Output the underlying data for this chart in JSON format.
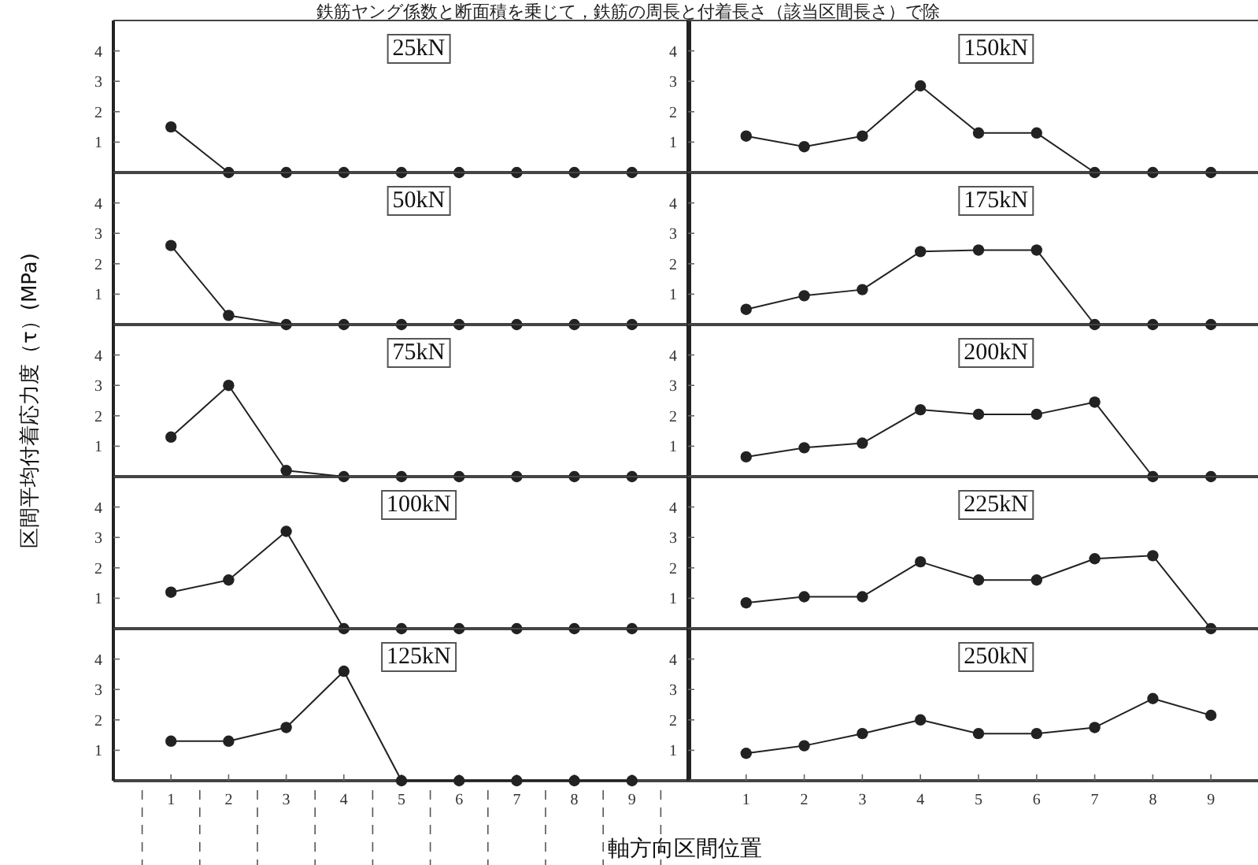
{
  "chart_data": [
    {
      "type": "line",
      "title": "25kN",
      "ylabel": "区間平均付着応力度（τ）(MPa)",
      "annotations": [
        "鉄筋ヤング係数と断面積を乗じて，鉄筋の周長と付着長さ（該当区間長さ）で除"
      ],
      "x": [
        1,
        2,
        3,
        4,
        5,
        6,
        7,
        8,
        9
      ],
      "values": [
        1.5,
        0,
        0,
        0,
        0,
        0,
        0,
        0,
        0
      ],
      "color": "#222222",
      "marker": "circle",
      "xlim": [
        0,
        10
      ],
      "ylim": [
        0,
        5
      ],
      "yticks": [
        1,
        2,
        3,
        4
      ],
      "tick_labels": "y"
    },
    {
      "type": "line",
      "title": "150kN",
      "x": [
        1,
        2,
        3,
        4,
        5,
        6,
        7,
        8,
        9
      ],
      "values": [
        1.2,
        0.85,
        1.2,
        2.85,
        1.3,
        1.3,
        0,
        0,
        0
      ],
      "color": "#222222",
      "marker": "circle",
      "xlim": [
        0,
        10
      ],
      "ylim": [
        0,
        5
      ],
      "yticks": [
        1,
        2,
        3,
        4
      ],
      "tick_labels": "y"
    },
    {
      "type": "line",
      "title": "50kN",
      "x": [
        1,
        2,
        3,
        4,
        5,
        6,
        7,
        8,
        9
      ],
      "values": [
        2.6,
        0.3,
        0,
        0,
        0,
        0,
        0,
        0,
        0
      ],
      "color": "#222222",
      "marker": "circle",
      "xlim": [
        0,
        10
      ],
      "ylim": [
        0,
        5
      ],
      "yticks": [
        1,
        2,
        3,
        4
      ],
      "tick_labels": "y"
    },
    {
      "type": "line",
      "title": "175kN",
      "x": [
        1,
        2,
        3,
        4,
        5,
        6,
        7,
        8,
        9
      ],
      "values": [
        0.5,
        0.95,
        1.15,
        2.4,
        2.45,
        2.45,
        0,
        0,
        0
      ],
      "color": "#222222",
      "marker": "circle",
      "xlim": [
        0,
        10
      ],
      "ylim": [
        0,
        5
      ],
      "yticks": [
        1,
        2,
        3,
        4
      ],
      "tick_labels": "y"
    },
    {
      "type": "line",
      "title": "75kN",
      "x": [
        1,
        2,
        3,
        4,
        5,
        6,
        7,
        8,
        9
      ],
      "values": [
        1.3,
        3.0,
        0.2,
        0,
        0,
        0,
        0,
        0,
        0
      ],
      "color": "#222222",
      "marker": "circle",
      "xlim": [
        0,
        10
      ],
      "ylim": [
        0,
        5
      ],
      "yticks": [
        1,
        2,
        3,
        4
      ],
      "tick_labels": "y"
    },
    {
      "type": "line",
      "title": "200kN",
      "x": [
        1,
        2,
        3,
        4,
        5,
        6,
        7,
        8,
        9
      ],
      "values": [
        0.65,
        0.95,
        1.1,
        2.2,
        2.05,
        2.05,
        2.45,
        0,
        0
      ],
      "color": "#222222",
      "marker": "circle",
      "xlim": [
        0,
        10
      ],
      "ylim": [
        0,
        5
      ],
      "yticks": [
        1,
        2,
        3,
        4
      ],
      "tick_labels": "y"
    },
    {
      "type": "line",
      "title": "100kN",
      "x": [
        1,
        2,
        3,
        4,
        5,
        6,
        7,
        8,
        9
      ],
      "values": [
        1.2,
        1.6,
        3.2,
        0,
        0,
        0,
        0,
        0,
        0
      ],
      "color": "#222222",
      "marker": "circle",
      "xlim": [
        0,
        10
      ],
      "ylim": [
        0,
        5
      ],
      "yticks": [
        1,
        2,
        3,
        4
      ],
      "tick_labels": "y"
    },
    {
      "type": "line",
      "title": "225kN",
      "x": [
        1,
        2,
        3,
        4,
        5,
        6,
        7,
        8,
        9
      ],
      "values": [
        0.85,
        1.05,
        1.05,
        2.2,
        1.6,
        1.6,
        2.3,
        2.4,
        0
      ],
      "color": "#222222",
      "marker": "circle",
      "xlim": [
        0,
        10
      ],
      "ylim": [
        0,
        5
      ],
      "yticks": [
        1,
        2,
        3,
        4
      ],
      "tick_labels": "y"
    },
    {
      "type": "line",
      "title": "125kN",
      "xlabel": "軸方向区間位置",
      "x": [
        1,
        2,
        3,
        4,
        5,
        6,
        7,
        8,
        9
      ],
      "values": [
        1.3,
        1.3,
        1.75,
        3.6,
        0,
        0,
        0,
        0,
        0
      ],
      "color": "#222222",
      "marker": "circle",
      "xlim": [
        0,
        10
      ],
      "ylim": [
        0,
        5
      ],
      "xticks": [
        1,
        2,
        3,
        4,
        5,
        6,
        7,
        8,
        9
      ],
      "yticks": [
        1,
        2,
        3,
        4
      ]
    },
    {
      "type": "line",
      "title": "250kN",
      "x": [
        1,
        2,
        3,
        4,
        5,
        6,
        7,
        8,
        9
      ],
      "values": [
        0.9,
        1.15,
        1.55,
        2.0,
        1.55,
        1.55,
        1.75,
        2.7,
        2.15
      ],
      "color": "#222222",
      "marker": "circle",
      "xlim": [
        0,
        10
      ],
      "ylim": [
        0,
        5
      ],
      "xticks": [
        1,
        2,
        3,
        4,
        5,
        6,
        7,
        8,
        9
      ],
      "yticks": [
        1,
        2,
        3,
        4
      ]
    }
  ]
}
